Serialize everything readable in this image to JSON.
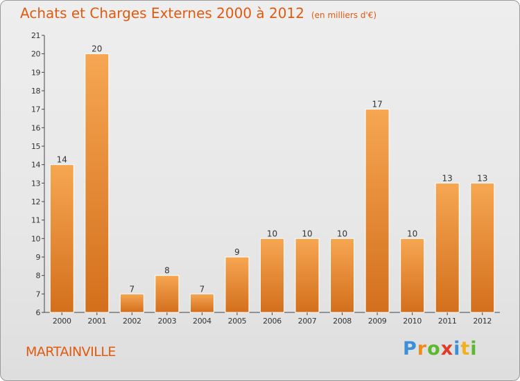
{
  "title": "Achats et Charges Externes 2000 à 2012",
  "subtitle": "(en milliers d'€)",
  "place": "MARTAINVILLE",
  "logo": {
    "text": "Proxiti",
    "letters": [
      {
        "ch": "P",
        "color": "#3a8fd8"
      },
      {
        "ch": "r",
        "color": "#f08a1c"
      },
      {
        "ch": "o",
        "color": "#5cb82c"
      },
      {
        "ch": "x",
        "color": "#e23a2a"
      },
      {
        "ch": "i",
        "color": "#3a8fd8"
      },
      {
        "ch": "t",
        "color": "#f0b020"
      },
      {
        "ch": "i",
        "color": "#5cb82c"
      }
    ]
  },
  "colors": {
    "accent": "#e05a10",
    "bar_top": "#f6a652",
    "bar_bottom": "#d36f1c"
  },
  "chart_data": {
    "type": "bar",
    "categories": [
      "2000",
      "2001",
      "2002",
      "2003",
      "2004",
      "2005",
      "2006",
      "2007",
      "2008",
      "2009",
      "2010",
      "2011",
      "2012"
    ],
    "values": [
      14,
      20,
      7,
      8,
      7,
      9,
      10,
      10,
      10,
      17,
      10,
      13,
      13
    ],
    "title": "Achats et Charges Externes 2000 à 2012",
    "ylim": [
      6,
      21
    ],
    "yticks": [
      6,
      7,
      8,
      9,
      10,
      11,
      12,
      13,
      14,
      15,
      16,
      17,
      18,
      19,
      20,
      21
    ],
    "grid": false,
    "data_labels": true
  }
}
